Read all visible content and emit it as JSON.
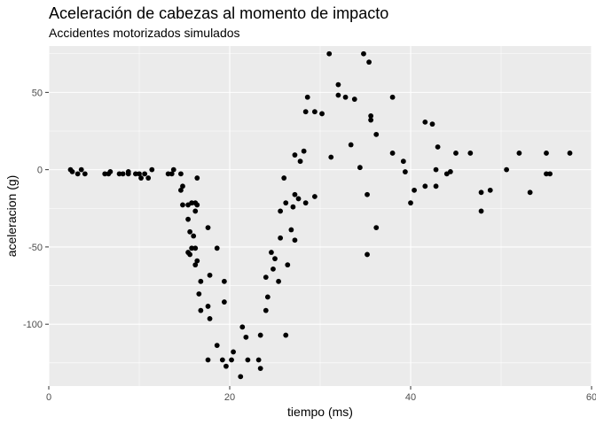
{
  "chart_data": {
    "type": "scatter",
    "title": "Aceleración de cabezas al momento de impacto",
    "subtitle": "Accidentes motorizados simulados",
    "xlabel": "tiempo (ms)",
    "ylabel": "aceleracion (g)",
    "xlim": [
      0,
      60
    ],
    "ylim": [
      -140,
      80
    ],
    "xticks": [
      0,
      20,
      40,
      60
    ],
    "yticks": [
      -100,
      -50,
      0,
      50
    ],
    "xtick_labels": [
      "0",
      "20",
      "40",
      "60"
    ],
    "ytick_labels": [
      "-100",
      "-50",
      "0",
      "50"
    ],
    "grid": true,
    "colors": {
      "panel_background": "#ebebeb",
      "grid_major": "#ffffff",
      "point": "#000000"
    },
    "points": [
      [
        2.4,
        0.0
      ],
      [
        2.6,
        -1.3
      ],
      [
        3.2,
        -2.7
      ],
      [
        3.6,
        0.0
      ],
      [
        4.0,
        -2.7
      ],
      [
        6.2,
        -2.7
      ],
      [
        6.6,
        -2.7
      ],
      [
        6.8,
        -1.3
      ],
      [
        7.8,
        -2.7
      ],
      [
        8.2,
        -2.7
      ],
      [
        8.8,
        -1.3
      ],
      [
        8.8,
        -2.7
      ],
      [
        9.6,
        -2.7
      ],
      [
        10.0,
        -2.7
      ],
      [
        10.2,
        -5.4
      ],
      [
        10.6,
        -2.7
      ],
      [
        11.0,
        -5.4
      ],
      [
        11.4,
        0.0
      ],
      [
        13.2,
        -2.7
      ],
      [
        13.6,
        -2.7
      ],
      [
        13.8,
        0.0
      ],
      [
        14.6,
        -13.3
      ],
      [
        14.6,
        -2.7
      ],
      [
        14.8,
        -22.8
      ],
      [
        14.8,
        -10.7
      ],
      [
        15.4,
        -22.8
      ],
      [
        15.4,
        -32.1
      ],
      [
        15.4,
        -53.5
      ],
      [
        15.6,
        -54.9
      ],
      [
        15.6,
        -40.2
      ],
      [
        15.8,
        -21.5
      ],
      [
        15.8,
        -50.8
      ],
      [
        16.0,
        -42.9
      ],
      [
        16.2,
        -26.8
      ],
      [
        16.2,
        -21.5
      ],
      [
        16.2,
        -50.8
      ],
      [
        16.2,
        -61.6
      ],
      [
        16.4,
        -5.4
      ],
      [
        16.4,
        -22.8
      ],
      [
        16.4,
        -59.0
      ],
      [
        16.6,
        -80.4
      ],
      [
        16.8,
        -72.3
      ],
      [
        16.8,
        -91.1
      ],
      [
        17.6,
        -37.5
      ],
      [
        17.6,
        -88.4
      ],
      [
        17.6,
        -123.1
      ],
      [
        17.8,
        -68.3
      ],
      [
        17.8,
        -96.4
      ],
      [
        18.6,
        -50.8
      ],
      [
        18.6,
        -113.7
      ],
      [
        19.2,
        -123.1
      ],
      [
        19.4,
        -72.3
      ],
      [
        19.4,
        -85.6
      ],
      [
        19.6,
        -127.2
      ],
      [
        20.2,
        -123.1
      ],
      [
        20.4,
        -117.9
      ],
      [
        21.2,
        -133.9
      ],
      [
        21.4,
        -101.8
      ],
      [
        21.8,
        -108.4
      ],
      [
        22.0,
        -123.1
      ],
      [
        23.2,
        -123.1
      ],
      [
        23.4,
        -128.6
      ],
      [
        23.4,
        -107.1
      ],
      [
        24.0,
        -69.6
      ],
      [
        24.0,
        -91.1
      ],
      [
        24.2,
        -82.4
      ],
      [
        24.6,
        -53.5
      ],
      [
        24.8,
        -64.3
      ],
      [
        25.0,
        -57.6
      ],
      [
        25.4,
        -72.3
      ],
      [
        25.6,
        -44.2
      ],
      [
        25.6,
        -26.8
      ],
      [
        26.0,
        -5.4
      ],
      [
        26.2,
        -107.1
      ],
      [
        26.2,
        -21.5
      ],
      [
        26.4,
        -61.6
      ],
      [
        26.8,
        -38.9
      ],
      [
        27.0,
        -24.1
      ],
      [
        27.2,
        -16.1
      ],
      [
        27.2,
        -45.6
      ],
      [
        27.2,
        9.5
      ],
      [
        27.6,
        -18.8
      ],
      [
        27.8,
        5.4
      ],
      [
        28.2,
        12.0
      ],
      [
        28.4,
        -21.5
      ],
      [
        28.4,
        37.5
      ],
      [
        28.6,
        46.9
      ],
      [
        29.4,
        37.5
      ],
      [
        29.4,
        -17.4
      ],
      [
        30.2,
        36.2
      ],
      [
        31.0,
        75.0
      ],
      [
        31.2,
        8.1
      ],
      [
        32.0,
        55.0
      ],
      [
        32.0,
        48.2
      ],
      [
        32.8,
        46.9
      ],
      [
        33.4,
        16.1
      ],
      [
        33.8,
        45.6
      ],
      [
        34.4,
        1.4
      ],
      [
        34.8,
        75.0
      ],
      [
        35.2,
        -16.1
      ],
      [
        35.2,
        -54.9
      ],
      [
        35.4,
        69.6
      ],
      [
        35.6,
        34.8
      ],
      [
        35.6,
        32.1
      ],
      [
        36.2,
        22.8
      ],
      [
        36.2,
        -37.5
      ],
      [
        38.0,
        10.7
      ],
      [
        38.0,
        46.9
      ],
      [
        39.2,
        5.4
      ],
      [
        39.4,
        -1.4
      ],
      [
        40.0,
        -21.5
      ],
      [
        40.4,
        -13.3
      ],
      [
        41.6,
        -10.7
      ],
      [
        41.6,
        30.8
      ],
      [
        42.4,
        29.5
      ],
      [
        42.8,
        0.0
      ],
      [
        42.8,
        -10.7
      ],
      [
        43.0,
        14.7
      ],
      [
        44.0,
        -2.7
      ],
      [
        44.4,
        -1.3
      ],
      [
        45.0,
        10.7
      ],
      [
        46.6,
        10.7
      ],
      [
        47.8,
        -14.7
      ],
      [
        47.8,
        -26.8
      ],
      [
        48.8,
        -13.3
      ],
      [
        50.6,
        0.0
      ],
      [
        52.0,
        10.7
      ],
      [
        53.2,
        -14.7
      ],
      [
        55.0,
        10.7
      ],
      [
        55.0,
        -2.7
      ],
      [
        55.4,
        -2.7
      ],
      [
        57.6,
        10.7
      ]
    ]
  }
}
